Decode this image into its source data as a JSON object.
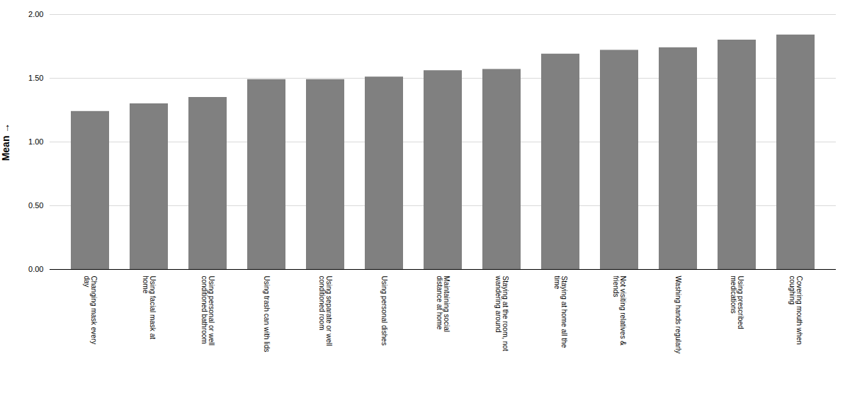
{
  "chart_data": {
    "type": "bar",
    "categories": [
      "Changing mask every\nday",
      "Using facial mask at\nhome",
      "Using personal or well\nconditioned bathroom",
      "Using trash can with lids",
      "Using separate or well\nconditioned room",
      "Using personal dishes",
      "Maintaining social\ndistance at home",
      "Staying at the room, not\nwandering around",
      "Staying at home all the\ntime",
      "Not visiting relatives &\nfriends",
      "Washing hands regularly",
      "Using prescribed\nmedications",
      "Covering mouth when\ncoughing"
    ],
    "values": [
      1.24,
      1.3,
      1.35,
      1.49,
      1.49,
      1.51,
      1.56,
      1.57,
      1.69,
      1.72,
      1.74,
      1.8,
      1.84
    ],
    "color": "#808080",
    "ylabel": "Mean",
    "ylim": [
      0,
      2.0
    ],
    "yticks": [
      {
        "value": 0,
        "label": "0.00"
      },
      {
        "value": 0.5,
        "label": "0.50"
      },
      {
        "value": 1,
        "label": "1.00"
      },
      {
        "value": 1.5,
        "label": "1.50"
      },
      {
        "value": 2,
        "label": "2.00"
      }
    ],
    "grid": true
  }
}
